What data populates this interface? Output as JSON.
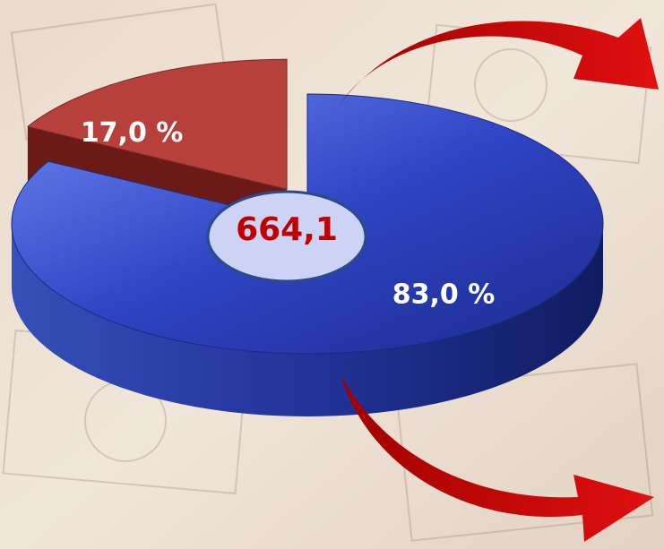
{
  "chart_data": {
    "type": "pie",
    "values": [
      83.0,
      17.0
    ],
    "value_labels": [
      "83,0 %",
      "17,0 %"
    ],
    "colors": [
      "#2f44c4",
      "#b8403c"
    ],
    "center_label": "664,1"
  }
}
